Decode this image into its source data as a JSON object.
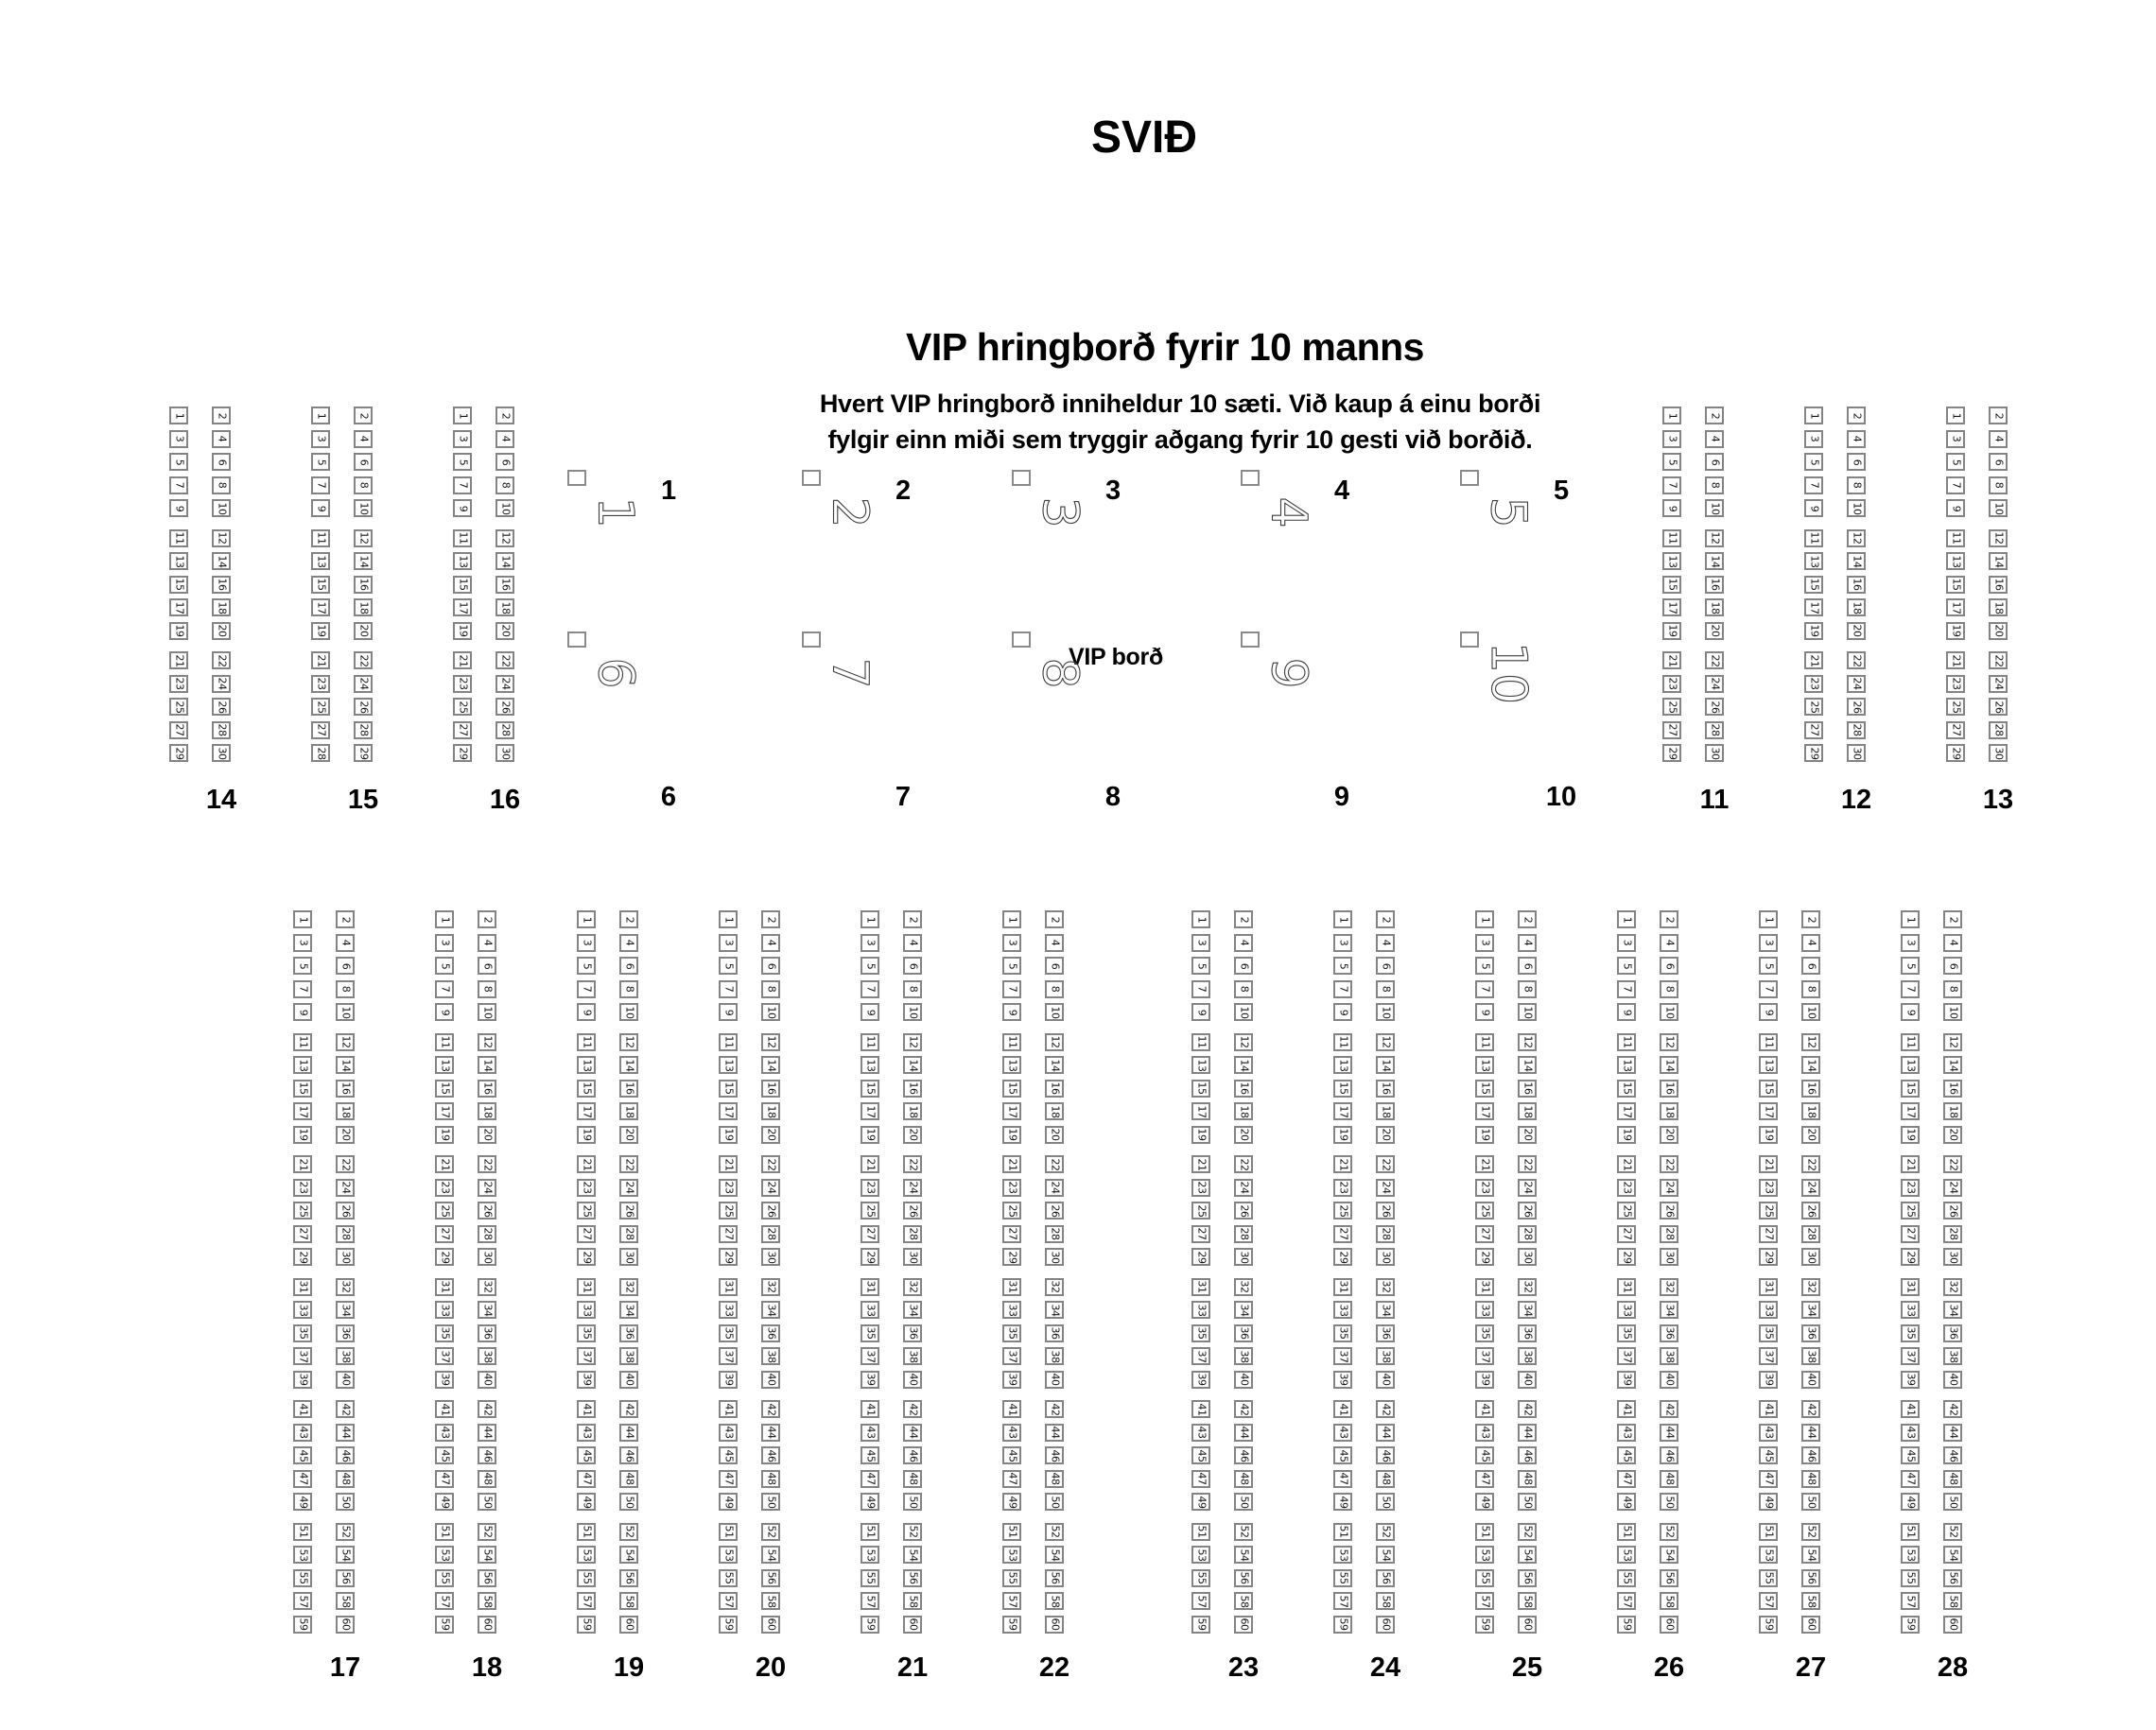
{
  "stage": {
    "title": "SVIÐ"
  },
  "vip": {
    "heading": "VIP hringborð fyrir 10 manns",
    "description": [
      "Hvert VIP hringborð inniheldur 10 sæti. Við kaup á einu borði",
      "fylgir einn miði sem tryggir aðgang fyrir 10 gesti við borðið."
    ],
    "table_note": "VIP borð",
    "seats_per_table": 10,
    "tables": [
      {
        "label": "1"
      },
      {
        "label": "2"
      },
      {
        "label": "3"
      },
      {
        "label": "4"
      },
      {
        "label": "5"
      },
      {
        "label": "6"
      },
      {
        "label": "7"
      },
      {
        "label": "8"
      },
      {
        "label": "9"
      },
      {
        "label": "10"
      }
    ]
  },
  "seat_numbering": {
    "scheme": "left column odd numbers, right column even numbers, numbered front to back",
    "rows_per_group": 5
  },
  "sections": {
    "top": [
      {
        "label": "14",
        "rows": 15,
        "first_seat": 1,
        "last_seat": 30
      },
      {
        "label": "15",
        "rows": 15,
        "first_seat": 1,
        "last_seat": 29,
        "row_overrides": {
          "15": [
            28,
            29
          ]
        }
      },
      {
        "label": "16",
        "rows": 15,
        "first_seat": 1,
        "last_seat": 30
      },
      {
        "label": "11",
        "rows": 15,
        "first_seat": 1,
        "last_seat": 30
      },
      {
        "label": "12",
        "rows": 15,
        "first_seat": 1,
        "last_seat": 30
      },
      {
        "label": "13",
        "rows": 15,
        "first_seat": 1,
        "last_seat": 30
      }
    ],
    "bottom": [
      {
        "label": "17",
        "rows": 30,
        "first_seat": 1,
        "last_seat": 60
      },
      {
        "label": "18",
        "rows": 30,
        "first_seat": 1,
        "last_seat": 60
      },
      {
        "label": "19",
        "rows": 30,
        "first_seat": 1,
        "last_seat": 60
      },
      {
        "label": "20",
        "rows": 30,
        "first_seat": 1,
        "last_seat": 60
      },
      {
        "label": "21",
        "rows": 30,
        "first_seat": 1,
        "last_seat": 60
      },
      {
        "label": "22",
        "rows": 30,
        "first_seat": 1,
        "last_seat": 60
      },
      {
        "label": "23",
        "rows": 30,
        "first_seat": 1,
        "last_seat": 60
      },
      {
        "label": "24",
        "rows": 30,
        "first_seat": 1,
        "last_seat": 60
      },
      {
        "label": "25",
        "rows": 30,
        "first_seat": 1,
        "last_seat": 60
      },
      {
        "label": "26",
        "rows": 30,
        "first_seat": 1,
        "last_seat": 60
      },
      {
        "label": "27",
        "rows": 30,
        "first_seat": 1,
        "last_seat": 60
      },
      {
        "label": "28",
        "rows": 30,
        "first_seat": 1,
        "last_seat": 60
      }
    ]
  },
  "colors": {
    "seat_border": "#848484",
    "seat_number": "#141414",
    "text": "#000000",
    "vip_number_outline": "#3d3d3d",
    "background": "#ffffff"
  }
}
